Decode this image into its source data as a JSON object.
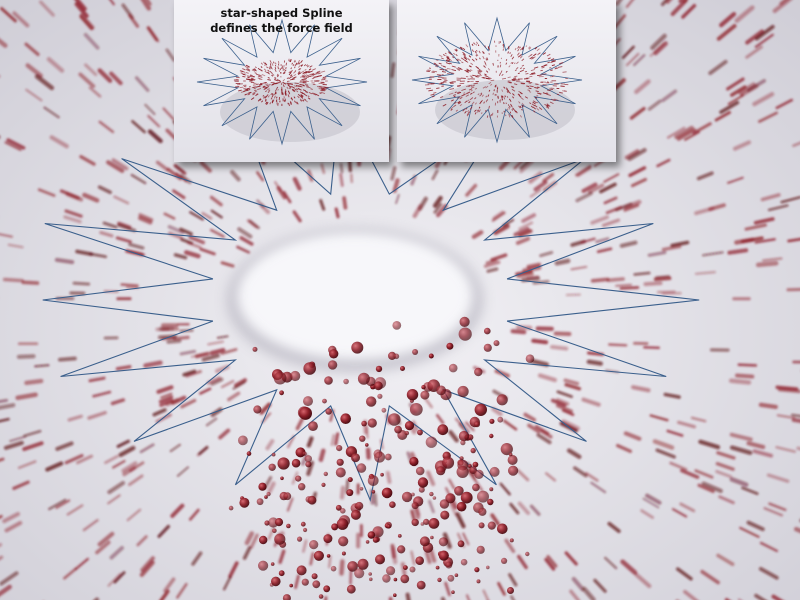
{
  "image": {
    "subject": "star-shaped spline force field with red particles",
    "colors": {
      "background": "#e9e8ee",
      "particle": "#8e1e28",
      "particle_dark": "#5e0f16",
      "spline": "#3a5f8c",
      "floor_hole": "#f6f6f9"
    }
  },
  "inset_left": {
    "caption_line1": "star-shaped Spline",
    "caption_line2": "defines the force field"
  },
  "inset_right": {}
}
